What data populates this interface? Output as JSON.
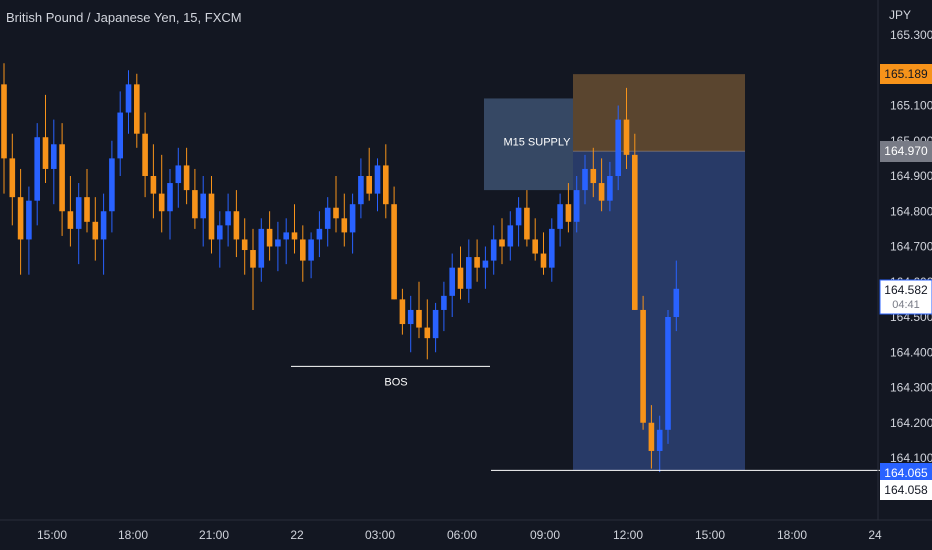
{
  "header": {
    "title": "British Pound / Japanese Yen, 15, FXCM",
    "currency": "JPY"
  },
  "colors": {
    "background": "#131722",
    "up": "#2962ff",
    "down": "#f7931a",
    "text": "#d1d4dc",
    "supply_zone": "#3d5170",
    "stop_zone": "#5a452f",
    "target_zone": "#283a67"
  },
  "chart_data": {
    "type": "candlestick",
    "y_unit": "JPY",
    "ylim": [
      164.01,
      165.34
    ],
    "y_ticks": [
      "165.300",
      "165.200",
      "165.100",
      "165.000",
      "164.900",
      "164.800",
      "164.700",
      "164.600",
      "164.500",
      "164.400",
      "164.300",
      "164.200",
      "164.100"
    ],
    "x_ticks": [
      "15:00",
      "18:00",
      "21:00",
      "22",
      "03:00",
      "06:00",
      "09:00",
      "12:00",
      "15:00",
      "18:00",
      "24"
    ],
    "candles": [
      [
        165.16,
        165.22,
        164.85,
        164.95
      ],
      [
        164.95,
        165.02,
        164.76,
        164.84
      ],
      [
        164.84,
        164.92,
        164.62,
        164.72
      ],
      [
        164.72,
        164.87,
        164.62,
        164.83
      ],
      [
        164.83,
        165.05,
        164.76,
        165.01
      ],
      [
        165.01,
        165.13,
        164.88,
        164.92
      ],
      [
        164.92,
        165.06,
        164.82,
        164.99
      ],
      [
        164.99,
        165.05,
        164.73,
        164.8
      ],
      [
        164.8,
        164.9,
        164.7,
        164.75
      ],
      [
        164.75,
        164.88,
        164.65,
        164.84
      ],
      [
        164.84,
        164.92,
        164.74,
        164.77
      ],
      [
        164.77,
        164.84,
        164.66,
        164.72
      ],
      [
        164.72,
        164.85,
        164.62,
        164.8
      ],
      [
        164.8,
        165.0,
        164.74,
        164.95
      ],
      [
        164.95,
        165.14,
        164.9,
        165.08
      ],
      [
        165.08,
        165.2,
        165.02,
        165.16
      ],
      [
        165.16,
        165.19,
        164.98,
        165.02
      ],
      [
        165.02,
        165.08,
        164.84,
        164.9
      ],
      [
        164.9,
        164.99,
        164.78,
        164.85
      ],
      [
        164.85,
        164.96,
        164.74,
        164.8
      ],
      [
        164.8,
        164.92,
        164.72,
        164.88
      ],
      [
        164.88,
        164.98,
        164.81,
        164.93
      ],
      [
        164.93,
        164.98,
        164.82,
        164.86
      ],
      [
        164.86,
        164.92,
        164.75,
        164.78
      ],
      [
        164.78,
        164.9,
        164.7,
        164.85
      ],
      [
        164.85,
        164.9,
        164.68,
        164.72
      ],
      [
        164.72,
        164.8,
        164.64,
        164.76
      ],
      [
        164.76,
        164.85,
        164.7,
        164.8
      ],
      [
        164.8,
        164.86,
        164.67,
        164.72
      ],
      [
        164.72,
        164.78,
        164.62,
        164.69
      ],
      [
        164.69,
        164.75,
        164.52,
        164.64
      ],
      [
        164.64,
        164.78,
        164.6,
        164.75
      ],
      [
        164.75,
        164.8,
        164.66,
        164.7
      ],
      [
        164.7,
        164.77,
        164.63,
        164.72
      ],
      [
        164.72,
        164.78,
        164.65,
        164.74
      ],
      [
        164.74,
        164.82,
        164.68,
        164.72
      ],
      [
        164.72,
        164.76,
        164.6,
        164.66
      ],
      [
        164.66,
        164.74,
        164.61,
        164.72
      ],
      [
        164.72,
        164.8,
        164.67,
        164.75
      ],
      [
        164.75,
        164.84,
        164.7,
        164.81
      ],
      [
        164.81,
        164.9,
        164.74,
        164.78
      ],
      [
        164.78,
        164.85,
        164.7,
        164.74
      ],
      [
        164.74,
        164.85,
        164.68,
        164.82
      ],
      [
        164.82,
        164.95,
        164.78,
        164.9
      ],
      [
        164.9,
        164.98,
        164.83,
        164.85
      ],
      [
        164.85,
        164.95,
        164.8,
        164.93
      ],
      [
        164.93,
        164.99,
        164.78,
        164.82
      ],
      [
        164.82,
        164.87,
        164.55,
        164.55
      ],
      [
        164.55,
        164.58,
        164.45,
        164.48
      ],
      [
        164.48,
        164.56,
        164.4,
        164.52
      ],
      [
        164.52,
        164.6,
        164.44,
        164.47
      ],
      [
        164.47,
        164.55,
        164.38,
        164.44
      ],
      [
        164.44,
        164.54,
        164.4,
        164.52
      ],
      [
        164.52,
        164.6,
        164.46,
        164.56
      ],
      [
        164.56,
        164.68,
        164.5,
        164.64
      ],
      [
        164.64,
        164.7,
        164.55,
        164.58
      ],
      [
        164.58,
        164.72,
        164.54,
        164.67
      ],
      [
        164.67,
        164.72,
        164.6,
        164.64
      ],
      [
        164.64,
        164.7,
        164.58,
        164.66
      ],
      [
        164.66,
        164.76,
        164.62,
        164.72
      ],
      [
        164.72,
        164.78,
        164.65,
        164.7
      ],
      [
        164.7,
        164.8,
        164.66,
        164.76
      ],
      [
        164.76,
        164.84,
        164.7,
        164.81
      ],
      [
        164.81,
        164.86,
        164.7,
        164.72
      ],
      [
        164.72,
        164.78,
        164.66,
        164.68
      ],
      [
        164.68,
        164.74,
        164.62,
        164.64
      ],
      [
        164.64,
        164.78,
        164.6,
        164.75
      ],
      [
        164.75,
        164.85,
        164.7,
        164.82
      ],
      [
        164.82,
        164.88,
        164.74,
        164.77
      ],
      [
        164.77,
        164.9,
        164.74,
        164.86
      ],
      [
        164.86,
        164.96,
        164.82,
        164.92
      ],
      [
        164.92,
        164.98,
        164.84,
        164.88
      ],
      [
        164.88,
        164.95,
        164.8,
        164.83
      ],
      [
        164.83,
        164.94,
        164.8,
        164.9
      ],
      [
        164.9,
        165.1,
        164.86,
        165.06
      ],
      [
        165.06,
        165.15,
        164.92,
        164.96
      ],
      [
        164.96,
        165.02,
        164.52,
        164.52
      ],
      [
        164.52,
        164.56,
        164.18,
        164.2
      ],
      [
        164.2,
        164.25,
        164.07,
        164.12
      ],
      [
        164.12,
        164.22,
        164.06,
        164.18
      ],
      [
        164.18,
        164.52,
        164.14,
        164.5
      ],
      [
        164.5,
        164.66,
        164.46,
        164.58
      ]
    ],
    "annotations": {
      "supply_zone": {
        "label": "M15 SUPPLY",
        "top": 165.12,
        "bottom": 164.86
      },
      "stop_zone": {
        "top": 165.189,
        "bottom": 164.97
      },
      "target_zone": {
        "top": 164.97,
        "bottom": 164.065
      },
      "bos": {
        "label": "BOS",
        "price": 164.36
      },
      "low_line": {
        "price": 164.065
      }
    },
    "price_labels": {
      "stop": "165.189",
      "entry": "164.970",
      "current": "164.582",
      "countdown": "04:41",
      "target": "164.065",
      "low": "164.058"
    }
  }
}
